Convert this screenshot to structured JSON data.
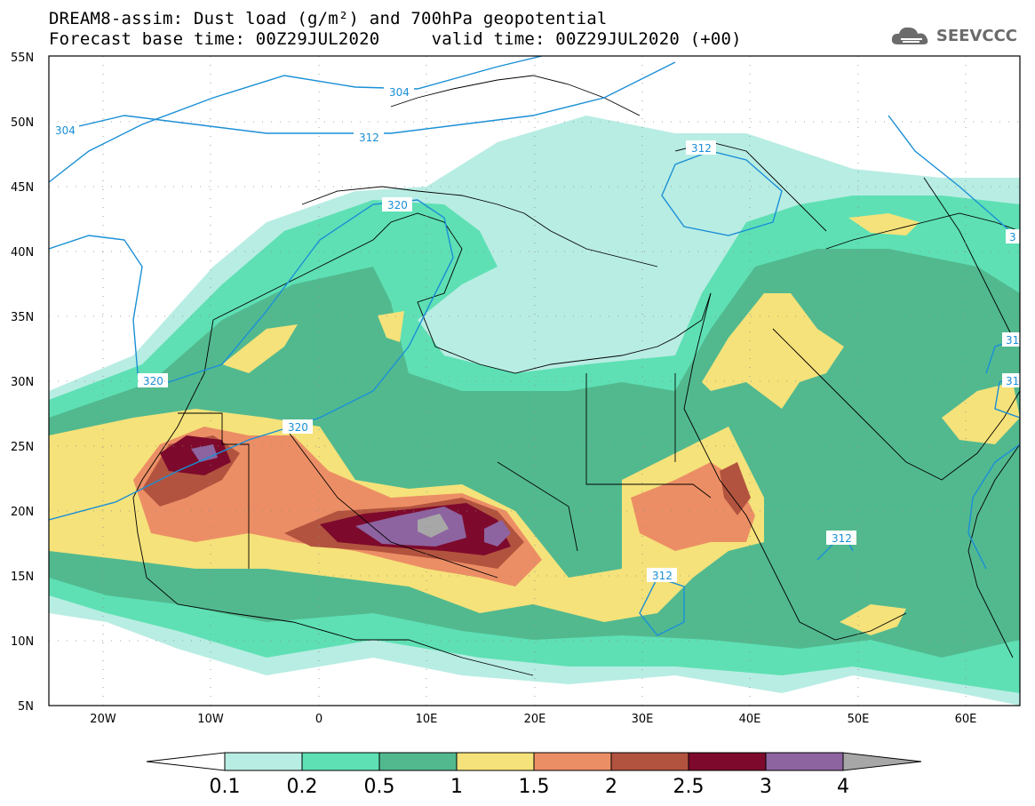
{
  "title": {
    "line1": "DREAM8-assim: Dust load (g/m²) and 700hPa geopotential",
    "line2": "Forecast base time: 00Z29JUL2020     valid time: 00Z29JUL2020 (+00)"
  },
  "brand": {
    "text": "SEEVCCC",
    "icon": "cloud-logo-icon"
  },
  "map": {
    "lat_labels": [
      "55N",
      "50N",
      "45N",
      "40N",
      "35N",
      "30N",
      "25N",
      "20N",
      "15N",
      "10N",
      "5N"
    ],
    "lon_labels": [
      "20W",
      "10W",
      "0",
      "10E",
      "20E",
      "30E",
      "40E",
      "50E",
      "60E"
    ],
    "contour_labels": [
      "304",
      "304",
      "312",
      "312",
      "312",
      "312",
      "320",
      "320",
      "320",
      "31",
      "31",
      "3"
    ],
    "colors": {
      "contour": "#1a8fd6",
      "border": "#000000"
    }
  },
  "colorbar": {
    "labels": [
      "0.1",
      "0.2",
      "0.5",
      "1",
      "1.5",
      "2",
      "2.5",
      "3",
      "4"
    ],
    "colors": [
      "#ffffff",
      "#b8ede3",
      "#5ee0b4",
      "#52b98f",
      "#f5e27a",
      "#ec8e65",
      "#b2533f",
      "#7d0a2c",
      "#8d63a0",
      "#a7a7a7"
    ]
  }
}
